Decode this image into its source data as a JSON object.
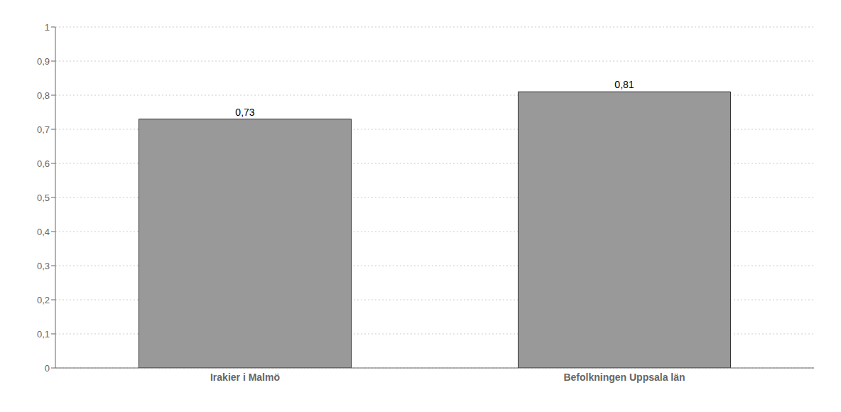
{
  "chart_data": {
    "type": "bar",
    "categories": [
      "Irakier i Malmö",
      "Befolkningen Uppsala län"
    ],
    "values": [
      0.73,
      0.81
    ],
    "value_labels": [
      "0,73",
      "0,81"
    ],
    "data_labels": true,
    "color": "#999999",
    "ylim": [
      0,
      1.0
    ],
    "yticks": [
      0,
      {
        "value": 0.1,
        "label": "0,1"
      },
      {
        "value": 0.2,
        "label": "0,2"
      },
      {
        "value": 0.3,
        "label": "0,3"
      },
      {
        "value": 0.4,
        "label": "0,4"
      },
      {
        "value": 0.5,
        "label": "0,5"
      },
      {
        "value": 0.6,
        "label": "0,6"
      },
      {
        "value": 0.7,
        "label": "0,7"
      },
      {
        "value": 0.8,
        "label": "0,8"
      },
      {
        "value": 0.9,
        "label": "0,9"
      },
      1
    ],
    "grid": true
  }
}
